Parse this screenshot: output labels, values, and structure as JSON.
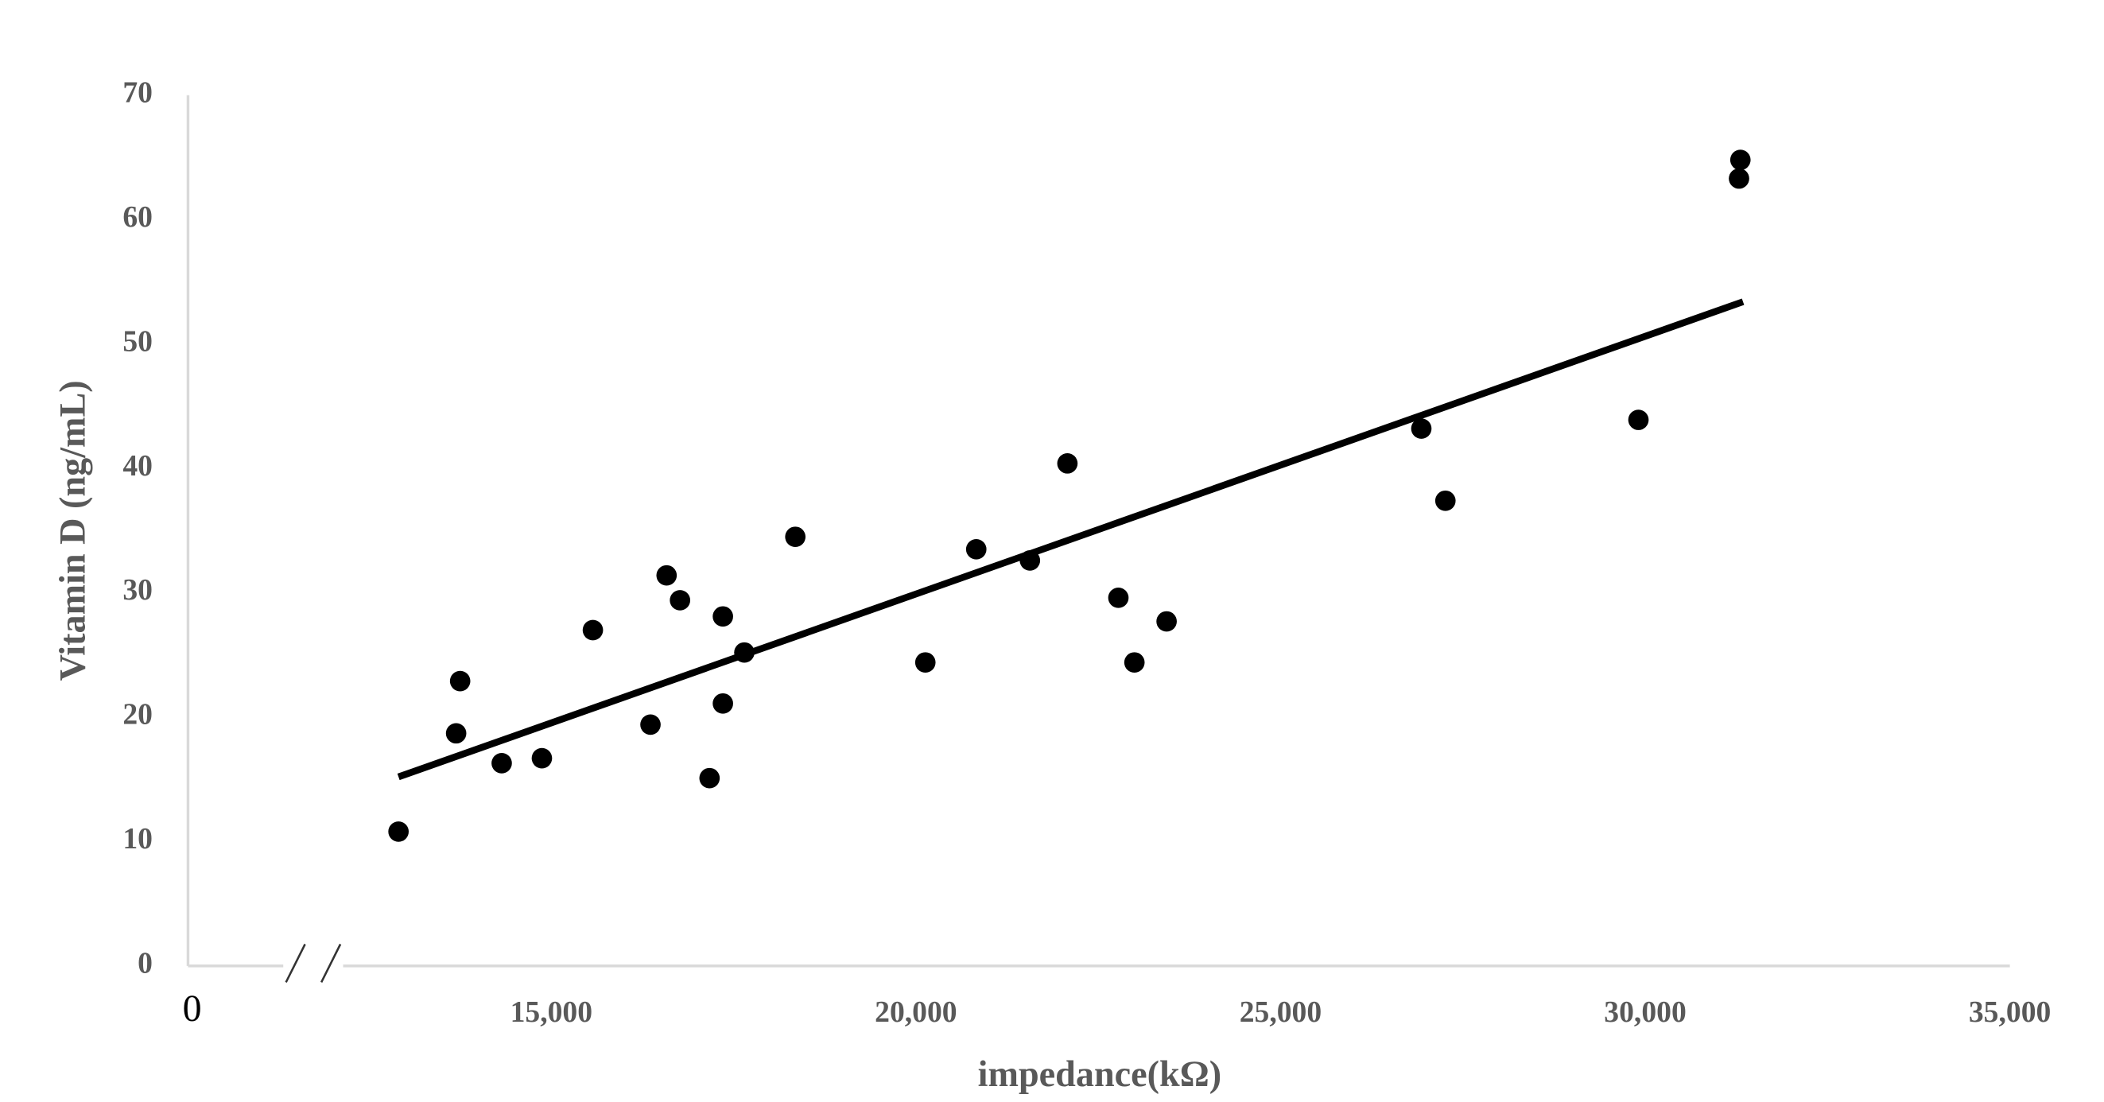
{
  "chart_data": {
    "type": "scatter",
    "x_label": "impedance(kΩ)",
    "y_label": "Vitamin D (ng/mL)",
    "x": [
      12905,
      13695,
      13750,
      14320,
      14871,
      15570,
      16360,
      16581,
      16765,
      17170,
      17353,
      17353,
      17647,
      18346,
      20129,
      20827,
      21563,
      22077,
      22776,
      22996,
      23437,
      26930,
      27260,
      29907,
      31286,
      31305
    ],
    "values": [
      10.8,
      18.7,
      22.9,
      16.3,
      16.7,
      27.0,
      19.4,
      31.4,
      29.4,
      15.1,
      28.1,
      21.1,
      25.2,
      34.5,
      24.4,
      33.5,
      32.6,
      40.4,
      29.6,
      24.4,
      27.7,
      43.2,
      37.4,
      43.9,
      63.3,
      64.8
    ],
    "color": "#000000",
    "trendline": {
      "x": [
        12905,
        31341
      ],
      "values": [
        15.2,
        53.4
      ],
      "color": "#000000"
    },
    "xlim": [
      0,
      35000
    ],
    "xticks": [
      0,
      {
        "value": 15000,
        "label": "15,000"
      },
      {
        "value": 20000,
        "label": "20,000"
      },
      {
        "value": 25000,
        "label": "25,000"
      },
      {
        "value": 30000,
        "label": "30,000"
      },
      {
        "value": 35000,
        "label": "35,000"
      }
    ],
    "x_axis_break": true,
    "ylim": [
      0,
      70
    ],
    "yticks": [
      0,
      10,
      20,
      30,
      40,
      50,
      60,
      70
    ],
    "grid": false
  }
}
